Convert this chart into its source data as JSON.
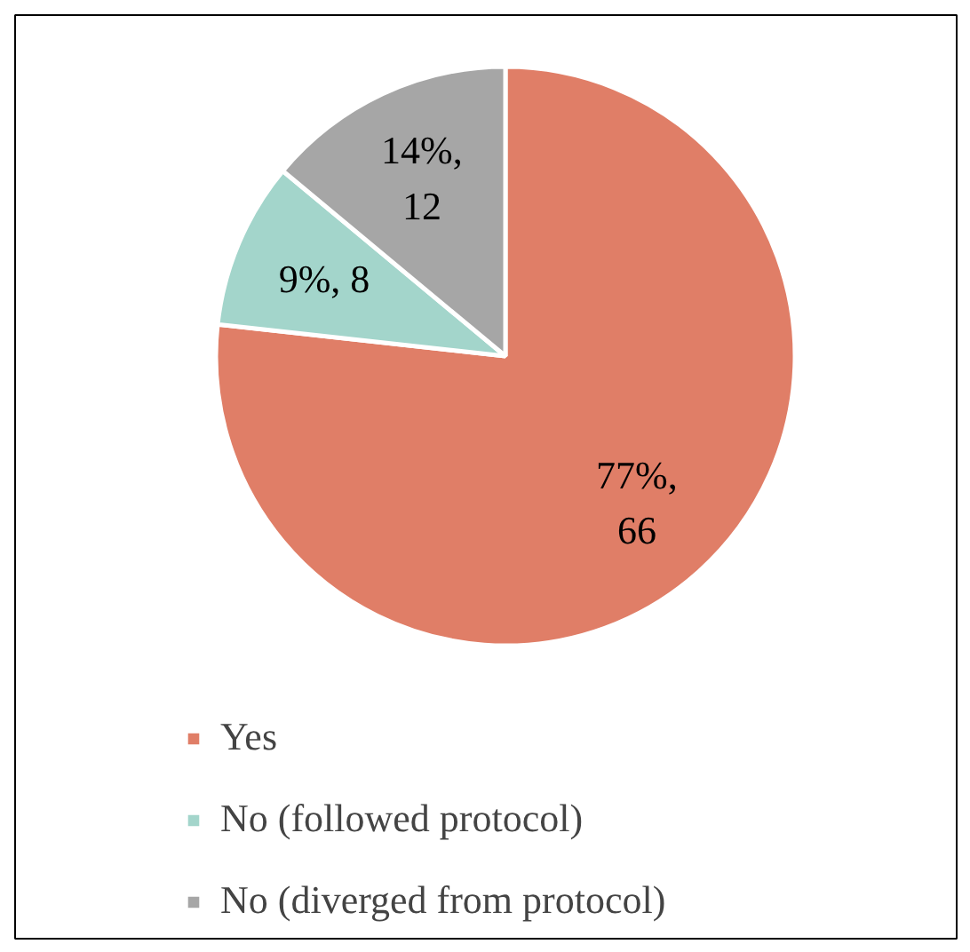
{
  "chart_data": {
    "type": "pie",
    "categories": [
      "Yes",
      "No (followed protocol)",
      "No (diverged from protocol)"
    ],
    "values": [
      66,
      8,
      12
    ],
    "colors": [
      "#e07e67",
      "#a3d5cb",
      "#a6a6a6"
    ],
    "value_labels": [
      "77%, 66",
      "9%, 8",
      "14%, 12"
    ],
    "legend": "bottom"
  }
}
